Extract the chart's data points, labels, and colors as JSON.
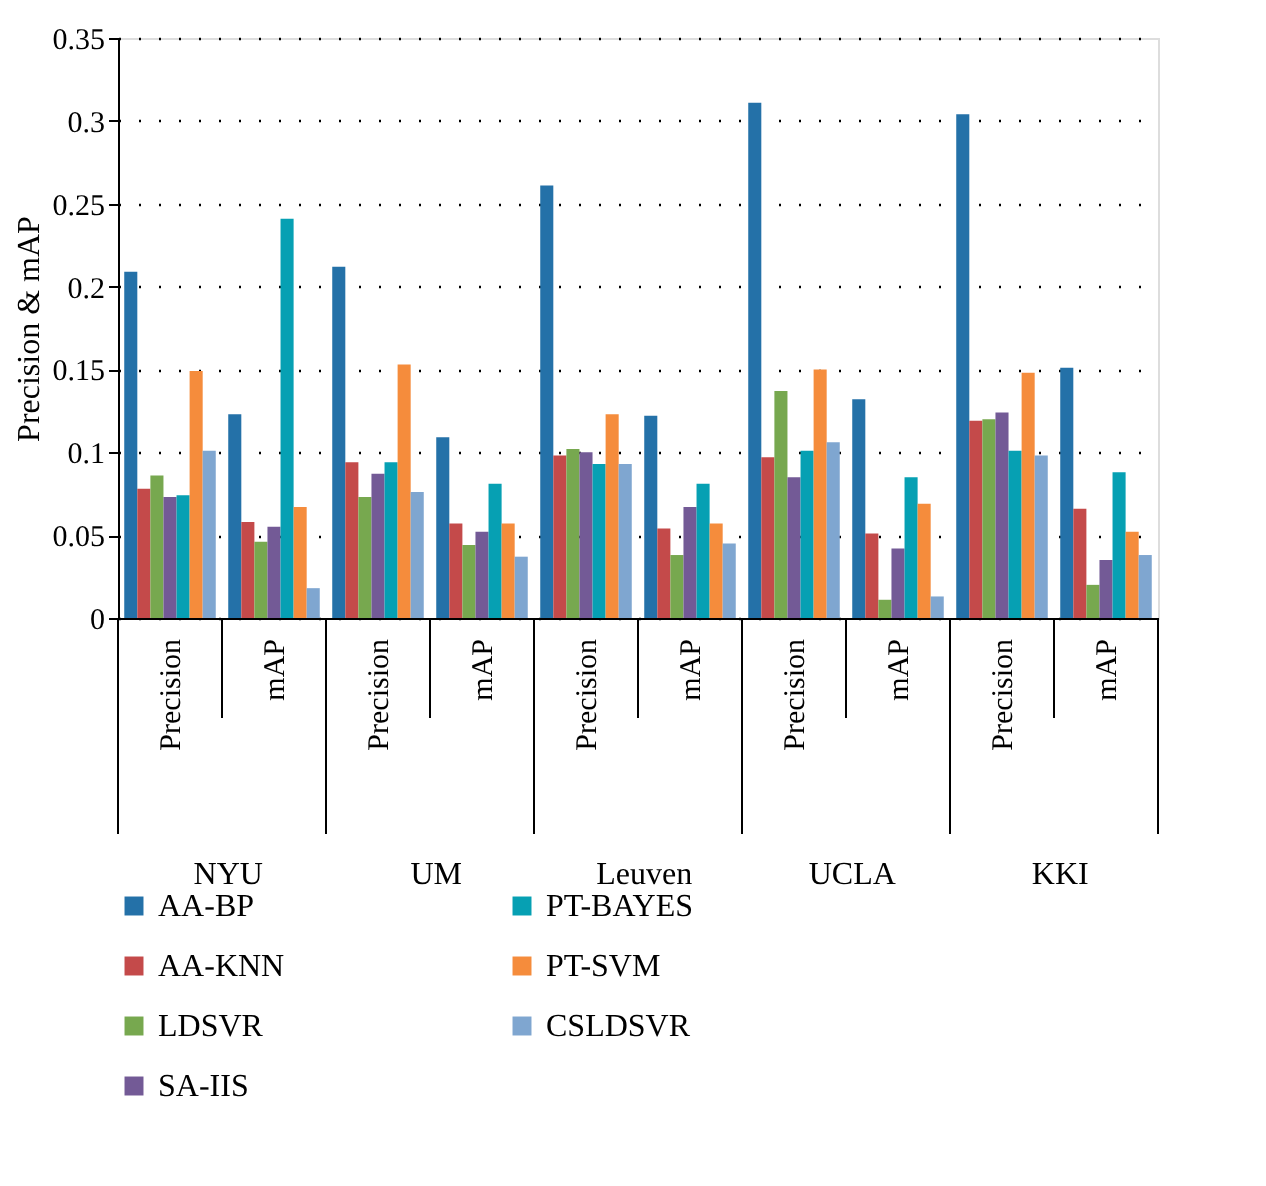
{
  "chart_data": {
    "type": "bar",
    "ylabel": "Precision & mAP",
    "categories": [
      "Precision",
      "mAP",
      "Precision",
      "mAP",
      "Precision",
      "mAP",
      "Precision",
      "mAP",
      "Precision",
      "mAP"
    ],
    "annotations": [
      "NYU",
      "UM",
      "Leuven",
      "UCLA",
      "KKI"
    ],
    "series": [
      {
        "name": "AA-BP",
        "color": "#2471a8",
        "values": [
          0.209,
          0.123,
          0.212,
          0.109,
          0.261,
          0.122,
          0.311,
          0.132,
          0.304,
          0.151
        ]
      },
      {
        "name": "AA-KNN",
        "color": "#c44a4a",
        "values": [
          0.078,
          0.058,
          0.094,
          0.057,
          0.098,
          0.054,
          0.097,
          0.051,
          0.119,
          0.066
        ]
      },
      {
        "name": "LDSVR",
        "color": "#77a84f",
        "values": [
          0.086,
          0.046,
          0.073,
          0.044,
          0.102,
          0.038,
          0.137,
          0.011,
          0.12,
          0.02
        ]
      },
      {
        "name": "SA-IIS",
        "color": "#735a96",
        "values": [
          0.073,
          0.055,
          0.087,
          0.052,
          0.1,
          0.067,
          0.085,
          0.042,
          0.124,
          0.035
        ]
      },
      {
        "name": "PT-BAYES",
        "color": "#06a0b3",
        "values": [
          0.074,
          0.241,
          0.094,
          0.081,
          0.093,
          0.081,
          0.101,
          0.085,
          0.101,
          0.088
        ]
      },
      {
        "name": "PT-SVM",
        "color": "#f58c3c",
        "values": [
          0.149,
          0.067,
          0.153,
          0.057,
          0.123,
          0.057,
          0.15,
          0.069,
          0.148,
          0.052
        ]
      },
      {
        "name": "CSLDSVR",
        "color": "#7fa6d0",
        "values": [
          0.101,
          0.018,
          0.076,
          0.037,
          0.093,
          0.045,
          0.106,
          0.013,
          0.098,
          0.038
        ]
      }
    ],
    "ylim": [
      0,
      0.35
    ],
    "yticks": [
      0,
      0.05,
      0.1,
      0.15,
      0.2,
      0.25,
      0.3,
      0.35
    ],
    "grid": "y",
    "legend": "bottom"
  }
}
